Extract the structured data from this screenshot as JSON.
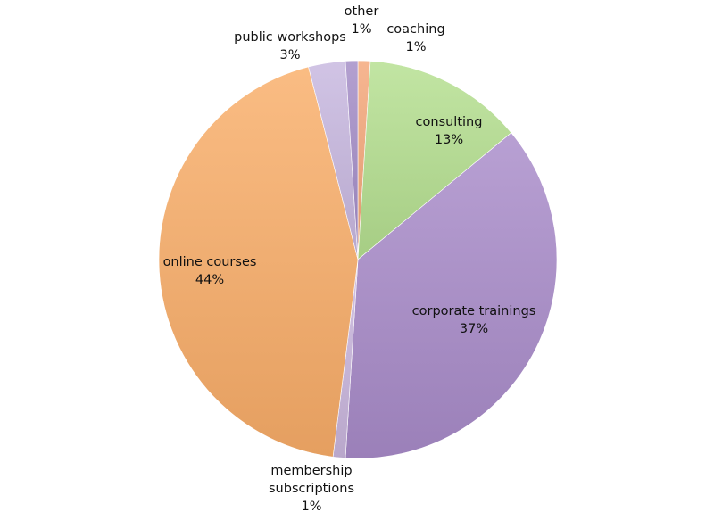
{
  "chart_data": {
    "type": "pie",
    "title": "",
    "slices": [
      {
        "label": "coaching",
        "value": 1,
        "value_label": "1%",
        "color": "#f4a679"
      },
      {
        "label": "consulting",
        "value": 13,
        "value_label": "13%",
        "color": "#b4df8f"
      },
      {
        "label": "corporate trainings",
        "value": 37,
        "value_label": "37%",
        "color": "#a98bc9"
      },
      {
        "label": "membership subscriptions",
        "label_lines": [
          "membership",
          "subscriptions"
        ],
        "value": 1,
        "value_label": "1%",
        "color": "#c9b6dd"
      },
      {
        "label": "online courses",
        "value": 44,
        "value_label": "44%",
        "color": "#f9ad68"
      },
      {
        "label": "public workshops",
        "value": 3,
        "value_label": "3%",
        "color": "#c7b7df"
      },
      {
        "label": "other",
        "value": 1,
        "value_label": "1%",
        "color": "#a28bc6"
      }
    ]
  }
}
